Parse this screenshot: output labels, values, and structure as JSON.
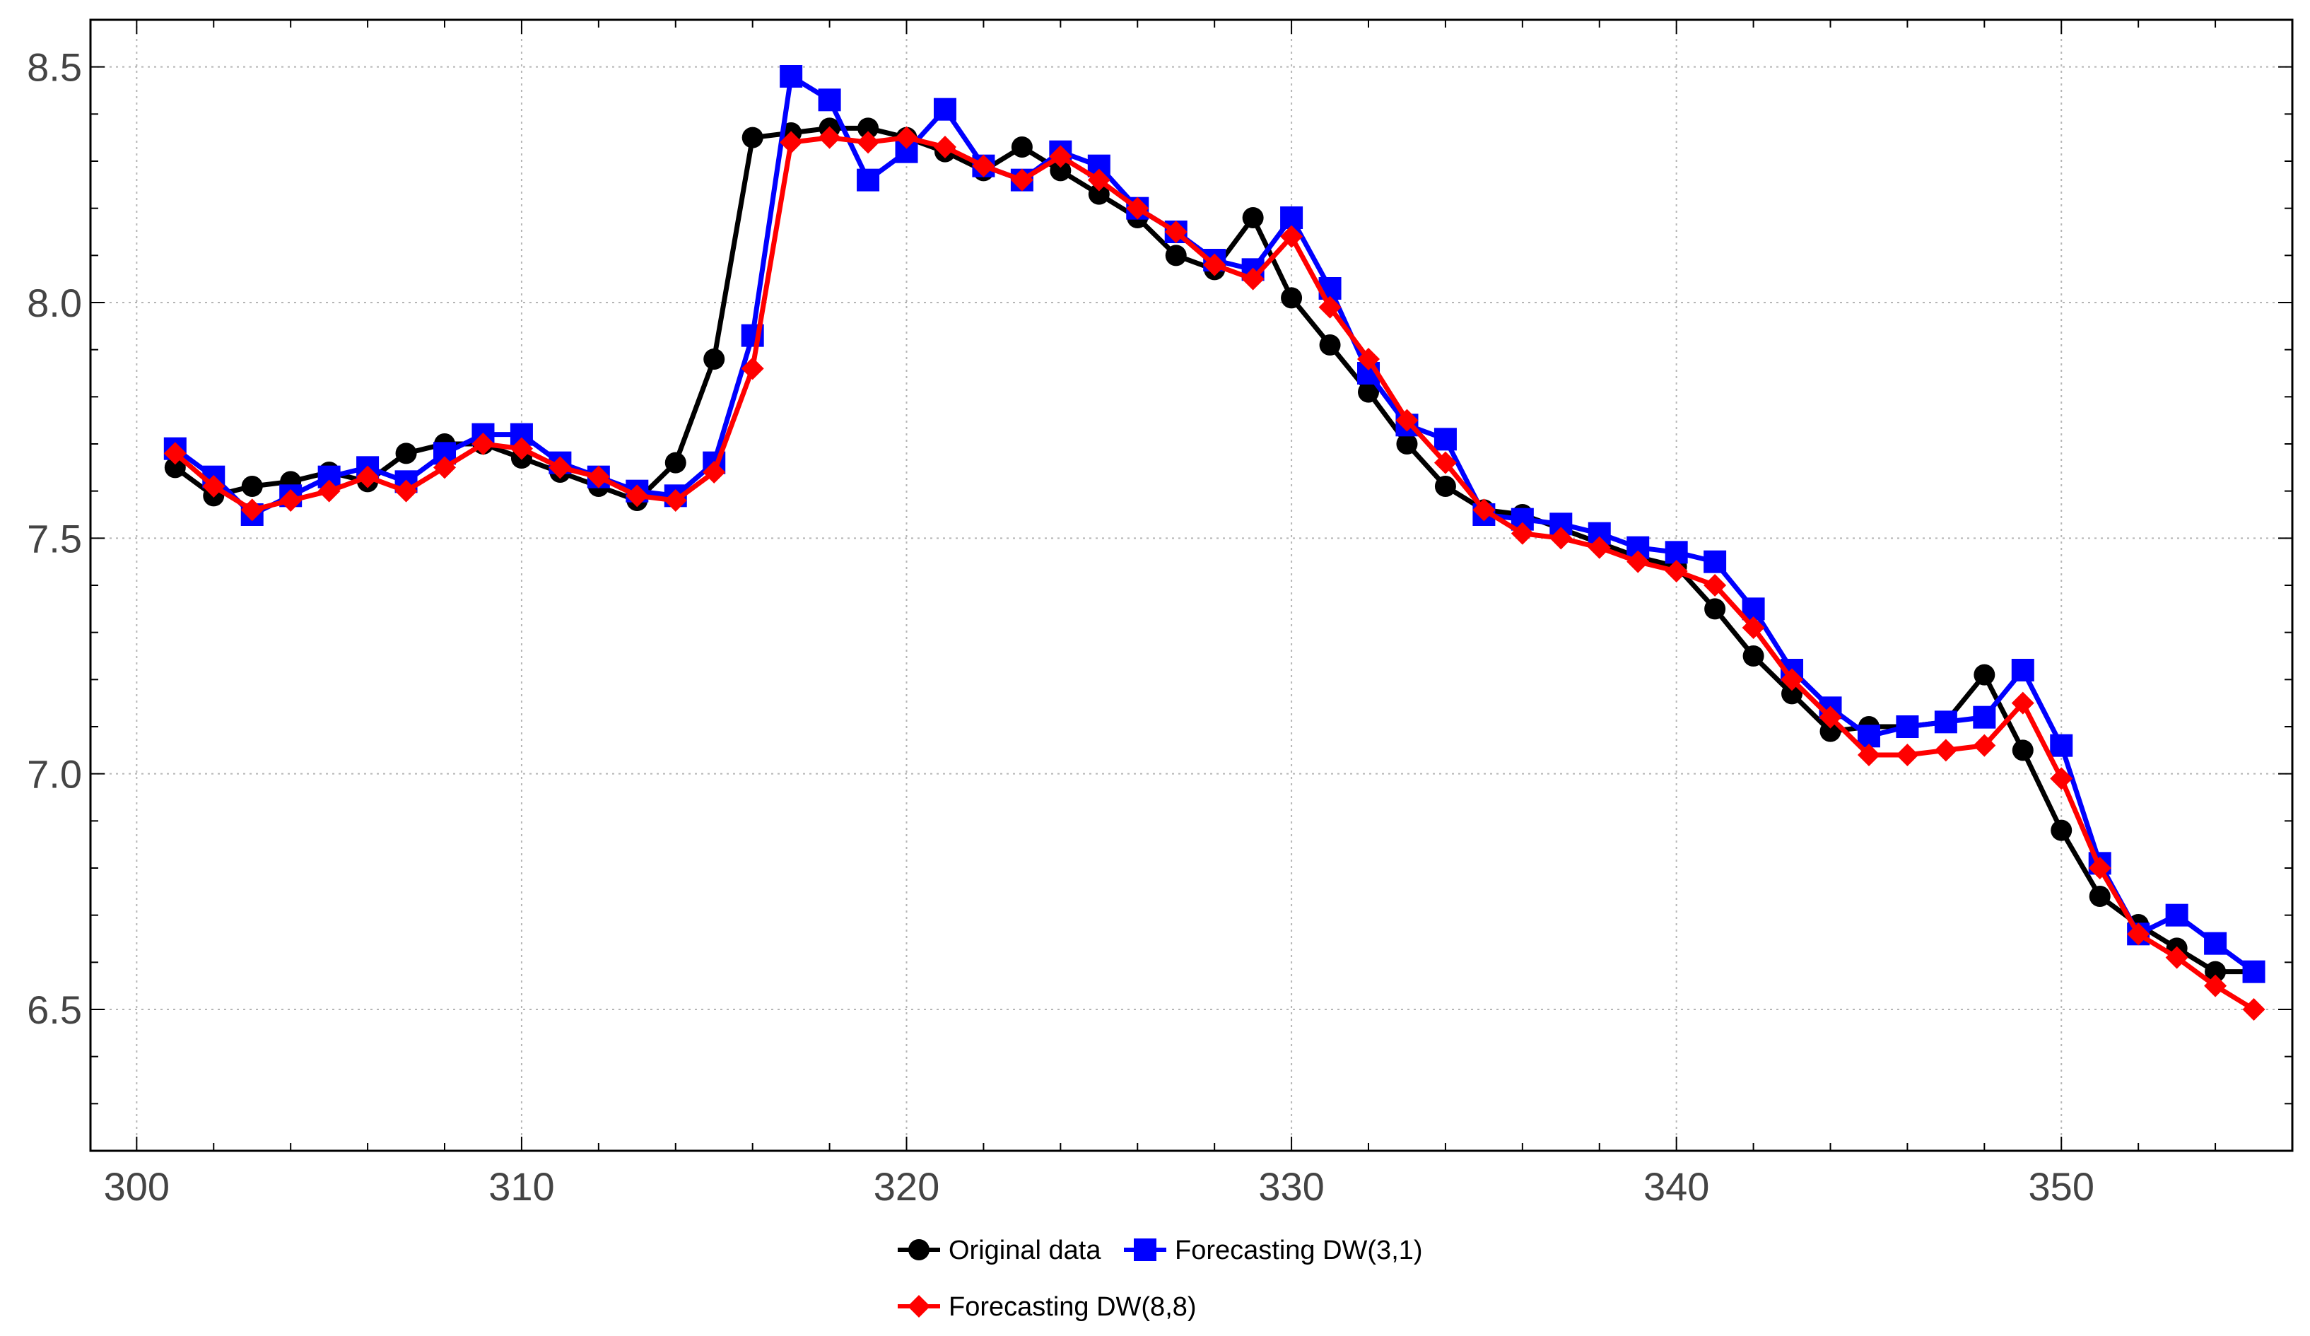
{
  "chart_data": {
    "type": "line",
    "title": "",
    "xlabel": "",
    "ylabel": "",
    "xlim": [
      298.8,
      356
    ],
    "ylim": [
      6.2,
      8.6
    ],
    "x_ticks": [
      300,
      310,
      320,
      330,
      340,
      350
    ],
    "y_ticks": [
      6.5,
      7.0,
      7.5,
      8.0,
      8.5
    ],
    "x_tick_labels": [
      "300",
      "310",
      "320",
      "330",
      "340",
      "350"
    ],
    "y_tick_labels": [
      "6.5",
      "7.0",
      "7.5",
      "8.0",
      "8.5"
    ],
    "grid": true,
    "legend_position": "bottom-center",
    "x": [
      301,
      302,
      303,
      304,
      305,
      306,
      307,
      308,
      309,
      310,
      311,
      312,
      313,
      314,
      315,
      316,
      317,
      318,
      319,
      320,
      321,
      322,
      323,
      324,
      325,
      326,
      327,
      328,
      329,
      330,
      331,
      332,
      333,
      334,
      335,
      336,
      337,
      338,
      339,
      340,
      341,
      342,
      343,
      344,
      345,
      346,
      347,
      348,
      349,
      350,
      351,
      352,
      353,
      354,
      355
    ],
    "series": [
      {
        "name": "Original data",
        "color": "#000000",
        "marker": "circle",
        "values": [
          7.65,
          7.59,
          7.61,
          7.62,
          7.64,
          7.62,
          7.68,
          7.7,
          7.7,
          7.67,
          7.64,
          7.61,
          7.58,
          7.66,
          7.88,
          8.35,
          8.36,
          8.37,
          8.37,
          8.35,
          8.32,
          8.28,
          8.33,
          8.28,
          8.23,
          8.18,
          8.1,
          8.07,
          8.18,
          8.01,
          7.91,
          7.81,
          7.7,
          7.61,
          7.56,
          7.55,
          7.52,
          7.49,
          7.46,
          7.44,
          7.35,
          7.25,
          7.17,
          7.09,
          7.1,
          7.1,
          7.11,
          7.21,
          7.05,
          6.88,
          6.74,
          6.68,
          6.63,
          6.58,
          6.58
        ]
      },
      {
        "name": "Forecasting DW(3,1)",
        "color": "#0000ff",
        "marker": "square",
        "values": [
          7.69,
          7.63,
          7.55,
          7.59,
          7.63,
          7.65,
          7.62,
          7.68,
          7.72,
          7.72,
          7.66,
          7.63,
          7.6,
          7.59,
          7.66,
          7.93,
          8.48,
          8.43,
          8.26,
          8.32,
          8.41,
          8.29,
          8.26,
          8.32,
          8.29,
          8.2,
          8.15,
          8.09,
          8.07,
          8.18,
          8.03,
          7.85,
          7.74,
          7.71,
          7.55,
          7.54,
          7.53,
          7.51,
          7.48,
          7.47,
          7.45,
          7.35,
          7.22,
          7.14,
          7.08,
          7.1,
          7.11,
          7.12,
          7.22,
          7.06,
          6.81,
          6.66,
          6.7,
          6.64,
          6.58
        ]
      },
      {
        "name": "Forecasting DW(8,8)",
        "color": "#ff0000",
        "marker": "diamond",
        "values": [
          7.68,
          7.61,
          7.56,
          7.58,
          7.6,
          7.63,
          7.6,
          7.65,
          7.7,
          7.69,
          7.65,
          7.63,
          7.59,
          7.58,
          7.64,
          7.86,
          8.34,
          8.35,
          8.34,
          8.35,
          8.33,
          8.29,
          8.26,
          8.31,
          8.26,
          8.2,
          8.15,
          8.08,
          8.05,
          8.14,
          7.99,
          7.88,
          7.75,
          7.66,
          7.56,
          7.51,
          7.5,
          7.48,
          7.45,
          7.43,
          7.4,
          7.31,
          7.2,
          7.12,
          7.04,
          7.04,
          7.05,
          7.06,
          7.15,
          6.99,
          6.8,
          6.66,
          6.61,
          6.55,
          6.5
        ]
      }
    ]
  }
}
